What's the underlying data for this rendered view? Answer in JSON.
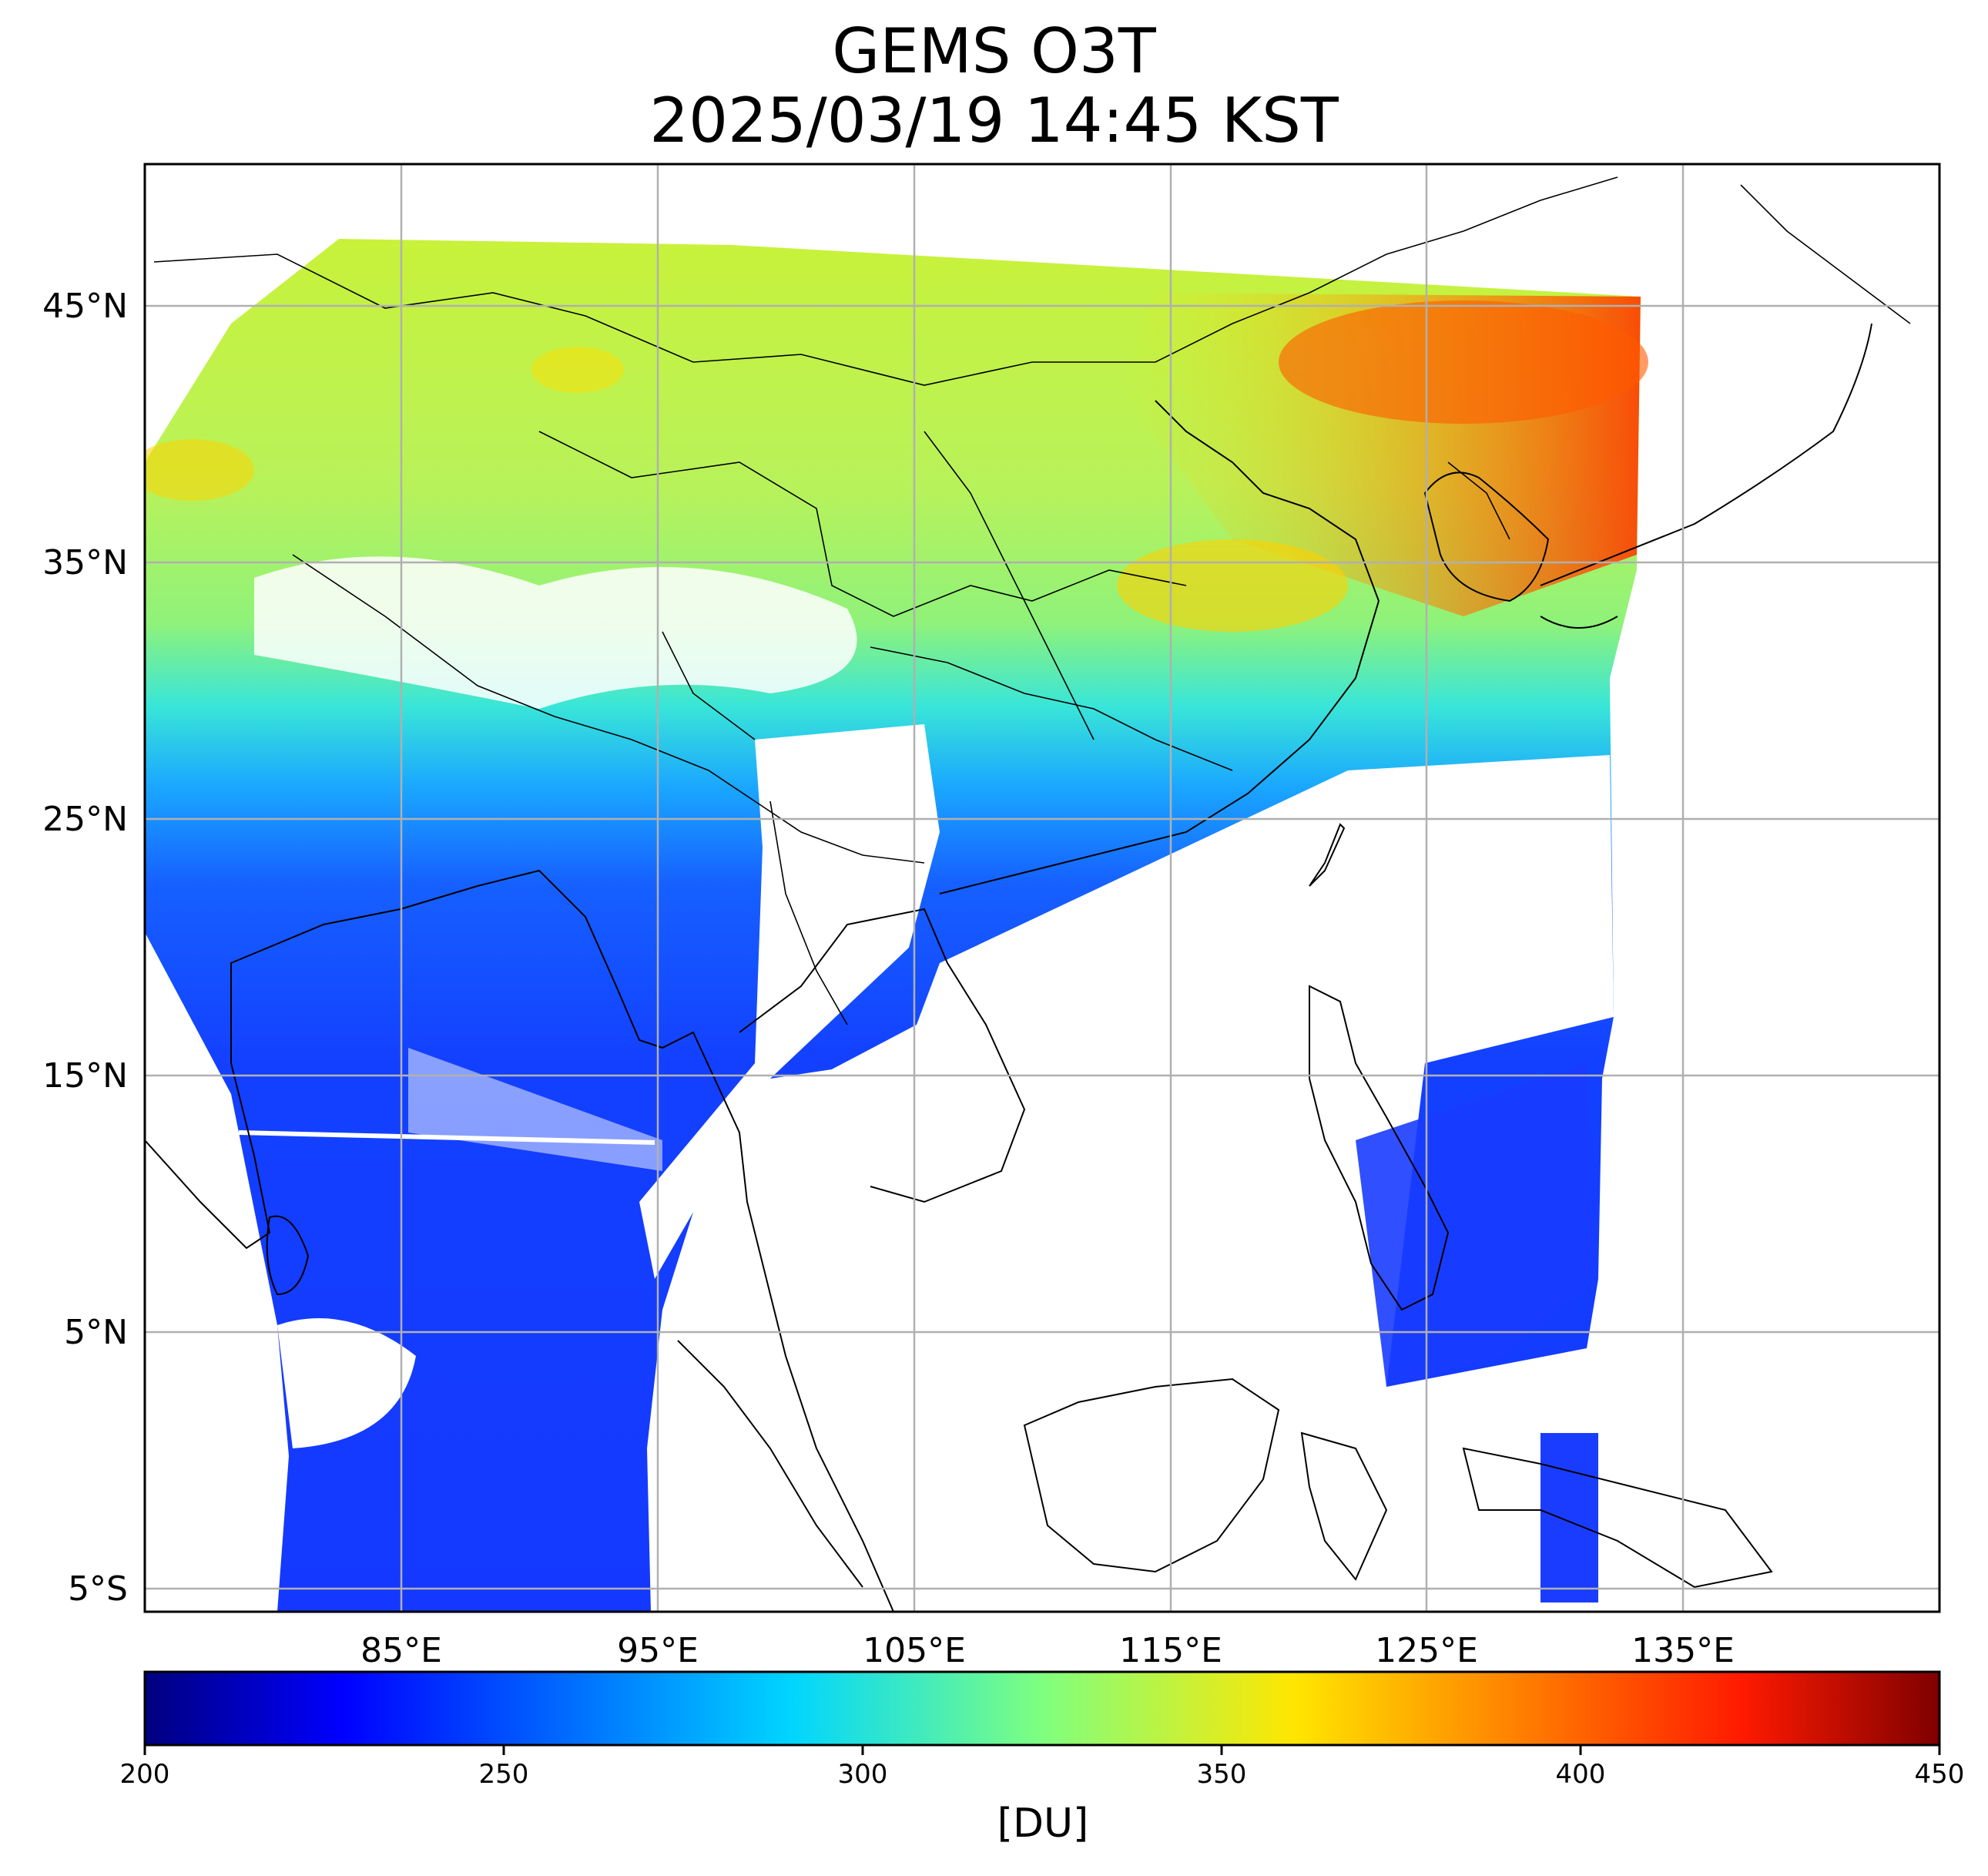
{
  "title": {
    "line1": "GEMS O3T",
    "line2": "2025/03/19 14:45 KST"
  },
  "map": {
    "lat_ticks": [
      "45°N",
      "35°N",
      "25°N",
      "15°N",
      "5°N",
      "5°S"
    ],
    "lon_ticks": [
      "85°E",
      "95°E",
      "105°E",
      "115°E",
      "125°E",
      "135°E"
    ],
    "lat_range": [
      -6,
      50.5
    ],
    "lon_range": [
      75,
      145
    ],
    "grid": true
  },
  "colorbar": {
    "min": 200,
    "max": 450,
    "ticks": [
      "200",
      "250",
      "300",
      "350",
      "400",
      "450"
    ],
    "label": "[DU]",
    "colormap": "jet",
    "colors": [
      "#00007f",
      "#0000ff",
      "#007fff",
      "#19ffe5",
      "#e5ff19",
      "#ff7f00",
      "#ff0000",
      "#7f0000"
    ]
  }
}
